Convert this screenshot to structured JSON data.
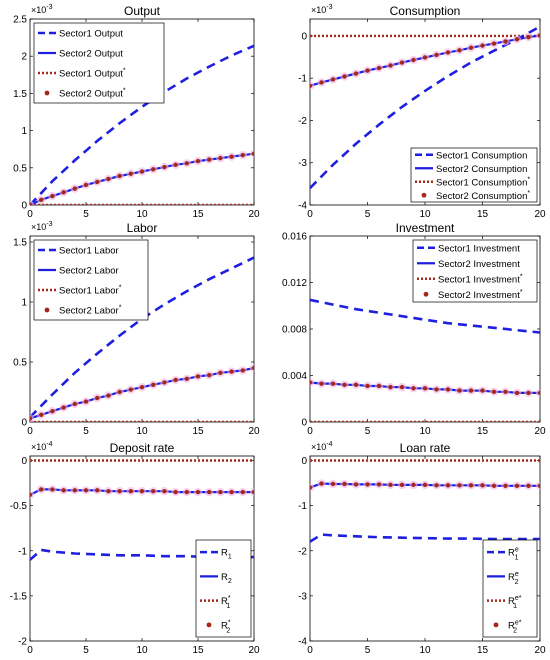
{
  "chart_data": [
    {
      "type": "line",
      "title": "Output",
      "scale_label": "×10",
      "scale_exp": "-3",
      "xlim": [
        0,
        20
      ],
      "ylim": [
        0,
        2.5
      ],
      "xticks": [
        0,
        5,
        10,
        15,
        20
      ],
      "xtick_labels": [
        "0",
        "5",
        "10",
        "15",
        "20"
      ],
      "yticks": [
        0,
        0.5,
        1,
        1.5,
        2,
        2.5
      ],
      "ytick_labels": [
        "0",
        "0.5",
        "1",
        "1.5",
        "2",
        "2.5"
      ],
      "legend_position": "top-left",
      "series": [
        {
          "name": "Sector1 Output",
          "name_sup": "",
          "style": "dash",
          "x": [
            0,
            2,
            4,
            6,
            8,
            10,
            12,
            14,
            16,
            18,
            20
          ],
          "y": [
            0.0,
            0.32,
            0.6,
            0.86,
            1.1,
            1.32,
            1.52,
            1.7,
            1.86,
            2.01,
            2.14
          ]
        },
        {
          "name": "Sector2 Output",
          "name_sup": "",
          "style": "solid",
          "x": [
            0,
            1,
            2,
            3,
            4,
            5,
            6,
            7,
            8,
            9,
            10,
            11,
            12,
            13,
            14,
            15,
            16,
            17,
            18,
            19,
            20
          ],
          "y": [
            0.0,
            0.07,
            0.12,
            0.17,
            0.22,
            0.27,
            0.31,
            0.35,
            0.39,
            0.42,
            0.45,
            0.48,
            0.51,
            0.54,
            0.56,
            0.59,
            0.61,
            0.63,
            0.65,
            0.67,
            0.69
          ]
        },
        {
          "name": "Sector1 Output",
          "name_sup": "*",
          "style": "dot",
          "x": [
            0,
            20
          ],
          "y": [
            0.0,
            0.0
          ]
        },
        {
          "name": "Sector2 Output",
          "name_sup": "*",
          "style": "marker",
          "x": [
            0,
            1,
            2,
            3,
            4,
            5,
            6,
            7,
            8,
            9,
            10,
            11,
            12,
            13,
            14,
            15,
            16,
            17,
            18,
            19,
            20
          ],
          "y": [
            0.0,
            0.07,
            0.12,
            0.17,
            0.22,
            0.27,
            0.31,
            0.35,
            0.39,
            0.42,
            0.45,
            0.48,
            0.51,
            0.54,
            0.56,
            0.59,
            0.61,
            0.63,
            0.65,
            0.67,
            0.69
          ]
        }
      ]
    },
    {
      "type": "line",
      "title": "Consumption",
      "scale_label": "×10",
      "scale_exp": "-3",
      "xlim": [
        0,
        20
      ],
      "ylim": [
        -4,
        0.4
      ],
      "xticks": [
        0,
        5,
        10,
        15,
        20
      ],
      "xtick_labels": [
        "0",
        "5",
        "10",
        "15",
        "20"
      ],
      "yticks": [
        -4,
        -3,
        -2,
        -1,
        0
      ],
      "ytick_labels": [
        "-4",
        "-3",
        "-2",
        "-1",
        "0"
      ],
      "legend_position": "bottom-right",
      "series": [
        {
          "name": "Sector1 Consumption",
          "name_sup": "",
          "style": "dash",
          "x": [
            0,
            2,
            4,
            6,
            8,
            10,
            12,
            14,
            16,
            18,
            20
          ],
          "y": [
            -3.6,
            -3.05,
            -2.55,
            -2.1,
            -1.68,
            -1.3,
            -0.95,
            -0.63,
            -0.35,
            -0.08,
            0.22
          ]
        },
        {
          "name": "Sector2 Consumption",
          "name_sup": "",
          "style": "solid",
          "x": [
            0,
            1,
            2,
            3,
            4,
            5,
            6,
            7,
            8,
            9,
            10,
            11,
            12,
            13,
            14,
            15,
            16,
            17,
            18,
            19,
            20
          ],
          "y": [
            -1.18,
            -1.1,
            -1.03,
            -0.96,
            -0.89,
            -0.82,
            -0.76,
            -0.7,
            -0.63,
            -0.57,
            -0.51,
            -0.45,
            -0.39,
            -0.34,
            -0.28,
            -0.23,
            -0.18,
            -0.13,
            -0.08,
            -0.03,
            0.01
          ]
        },
        {
          "name": "Sector1 Consumption",
          "name_sup": "*",
          "style": "dot",
          "x": [
            0,
            20
          ],
          "y": [
            0.0,
            0.0
          ]
        },
        {
          "name": "Sector2 Consumption",
          "name_sup": "*",
          "style": "marker",
          "x": [
            0,
            1,
            2,
            3,
            4,
            5,
            6,
            7,
            8,
            9,
            10,
            11,
            12,
            13,
            14,
            15,
            16,
            17,
            18,
            19,
            20
          ],
          "y": [
            -1.18,
            -1.1,
            -1.03,
            -0.96,
            -0.89,
            -0.82,
            -0.76,
            -0.7,
            -0.63,
            -0.57,
            -0.51,
            -0.45,
            -0.39,
            -0.34,
            -0.28,
            -0.23,
            -0.18,
            -0.13,
            -0.08,
            -0.03,
            0.01
          ]
        }
      ]
    },
    {
      "type": "line",
      "title": "Labor",
      "scale_label": "×10",
      "scale_exp": "-3",
      "xlim": [
        0,
        20
      ],
      "ylim": [
        0,
        1.55
      ],
      "xticks": [
        0,
        5,
        10,
        15,
        20
      ],
      "xtick_labels": [
        "0",
        "5",
        "10",
        "15",
        "20"
      ],
      "yticks": [
        0,
        0.5,
        1,
        1.5
      ],
      "ytick_labels": [
        "0",
        "0.5",
        "1",
        "1.5"
      ],
      "legend_position": "top-left",
      "series": [
        {
          "name": "Sector1 Labor",
          "name_sup": "",
          "style": "dash",
          "x": [
            0,
            2,
            4,
            6,
            8,
            10,
            12,
            14,
            16,
            18,
            20
          ],
          "y": [
            0.04,
            0.23,
            0.41,
            0.57,
            0.72,
            0.86,
            0.98,
            1.09,
            1.19,
            1.28,
            1.37
          ]
        },
        {
          "name": "Sector2 Labor",
          "name_sup": "",
          "style": "solid",
          "x": [
            0,
            1,
            2,
            3,
            4,
            5,
            6,
            7,
            8,
            9,
            10,
            11,
            12,
            13,
            14,
            15,
            16,
            17,
            18,
            19,
            20
          ],
          "y": [
            0.03,
            0.06,
            0.09,
            0.12,
            0.15,
            0.17,
            0.2,
            0.22,
            0.25,
            0.27,
            0.29,
            0.31,
            0.33,
            0.35,
            0.36,
            0.38,
            0.39,
            0.41,
            0.42,
            0.43,
            0.45
          ]
        },
        {
          "name": "Sector1 Labor",
          "name_sup": "*",
          "style": "dot",
          "x": [
            0,
            20
          ],
          "y": [
            0.0,
            0.0
          ]
        },
        {
          "name": "Sector2 Labor",
          "name_sup": "*",
          "style": "marker",
          "x": [
            0,
            1,
            2,
            3,
            4,
            5,
            6,
            7,
            8,
            9,
            10,
            11,
            12,
            13,
            14,
            15,
            16,
            17,
            18,
            19,
            20
          ],
          "y": [
            0.03,
            0.06,
            0.09,
            0.12,
            0.15,
            0.17,
            0.2,
            0.22,
            0.25,
            0.27,
            0.29,
            0.31,
            0.33,
            0.35,
            0.36,
            0.38,
            0.39,
            0.41,
            0.42,
            0.43,
            0.45
          ]
        }
      ]
    },
    {
      "type": "line",
      "title": "Investment",
      "scale_label": "",
      "scale_exp": "",
      "xlim": [
        0,
        20
      ],
      "ylim": [
        0,
        0.016
      ],
      "xticks": [
        0,
        5,
        10,
        15,
        20
      ],
      "xtick_labels": [
        "0",
        "5",
        "10",
        "15",
        "20"
      ],
      "yticks": [
        0,
        0.004,
        0.008,
        0.012,
        0.016
      ],
      "ytick_labels": [
        "0",
        "0.004",
        "0.008",
        "0.012",
        "0.016"
      ],
      "legend_position": "top-right",
      "series": [
        {
          "name": "Sector1 Investment",
          "name_sup": "",
          "style": "dash",
          "x": [
            0,
            2,
            4,
            6,
            8,
            10,
            12,
            14,
            16,
            18,
            20
          ],
          "y": [
            0.0105,
            0.0101,
            0.0097,
            0.0094,
            0.0091,
            0.0088,
            0.0085,
            0.0083,
            0.0081,
            0.0079,
            0.0077
          ]
        },
        {
          "name": "Sector2 Investment",
          "name_sup": "",
          "style": "solid",
          "x": [
            0,
            1,
            2,
            3,
            4,
            5,
            6,
            7,
            8,
            9,
            10,
            11,
            12,
            13,
            14,
            15,
            16,
            17,
            18,
            19,
            20
          ],
          "y": [
            0.0034,
            0.0033,
            0.0033,
            0.0032,
            0.0032,
            0.0031,
            0.0031,
            0.003,
            0.003,
            0.0029,
            0.0029,
            0.0028,
            0.0028,
            0.0027,
            0.0027,
            0.0027,
            0.0026,
            0.0026,
            0.0025,
            0.0025,
            0.0025
          ]
        },
        {
          "name": "Sector1 Investment",
          "name_sup": "*",
          "style": "dot",
          "x": [
            0,
            20
          ],
          "y": [
            0.0,
            0.0
          ]
        },
        {
          "name": "Sector2 Investment",
          "name_sup": "*",
          "style": "marker",
          "x": [
            0,
            1,
            2,
            3,
            4,
            5,
            6,
            7,
            8,
            9,
            10,
            11,
            12,
            13,
            14,
            15,
            16,
            17,
            18,
            19,
            20
          ],
          "y": [
            0.0034,
            0.0033,
            0.0033,
            0.0032,
            0.0032,
            0.0031,
            0.0031,
            0.003,
            0.003,
            0.0029,
            0.0029,
            0.0028,
            0.0028,
            0.0027,
            0.0027,
            0.0027,
            0.0026,
            0.0026,
            0.0025,
            0.0025,
            0.0025
          ]
        }
      ]
    },
    {
      "type": "line",
      "title": "Deposit rate",
      "scale_label": "×10",
      "scale_exp": "-4",
      "xlim": [
        0,
        20
      ],
      "ylim": [
        -2,
        0.05
      ],
      "xticks": [
        0,
        5,
        10,
        15,
        20
      ],
      "xtick_labels": [
        "0",
        "5",
        "10",
        "15",
        "20"
      ],
      "yticks": [
        -2,
        -1.5,
        -1,
        -0.5,
        0
      ],
      "ytick_labels": [
        "-2",
        "-1.5",
        "-1",
        "-0.5",
        "0"
      ],
      "legend_position": "bottom-right",
      "series": [
        {
          "name": "R",
          "name_sub": "1",
          "name_sup": "",
          "style": "dash",
          "x": [
            0,
            1,
            2,
            4,
            6,
            8,
            10,
            12,
            14,
            16,
            18,
            20
          ],
          "y": [
            -1.1,
            -0.99,
            -1.01,
            -1.03,
            -1.04,
            -1.05,
            -1.05,
            -1.06,
            -1.06,
            -1.07,
            -1.07,
            -1.07
          ]
        },
        {
          "name": "R",
          "name_sub": "2",
          "name_sup": "",
          "style": "solid",
          "x": [
            0,
            1,
            2,
            3,
            4,
            5,
            6,
            7,
            8,
            9,
            10,
            11,
            12,
            13,
            14,
            15,
            16,
            17,
            18,
            19,
            20
          ],
          "y": [
            -0.38,
            -0.32,
            -0.32,
            -0.33,
            -0.33,
            -0.33,
            -0.33,
            -0.34,
            -0.34,
            -0.34,
            -0.34,
            -0.34,
            -0.34,
            -0.35,
            -0.35,
            -0.35,
            -0.35,
            -0.35,
            -0.35,
            -0.35,
            -0.35
          ]
        },
        {
          "name": "R",
          "name_sub": "1",
          "name_sup": "*",
          "style": "dot",
          "x": [
            0,
            20
          ],
          "y": [
            0.0,
            0.0
          ]
        },
        {
          "name": "R",
          "name_sub": "2",
          "name_sup": "*",
          "style": "marker",
          "x": [
            0,
            1,
            2,
            3,
            4,
            5,
            6,
            7,
            8,
            9,
            10,
            11,
            12,
            13,
            14,
            15,
            16,
            17,
            18,
            19,
            20
          ],
          "y": [
            -0.38,
            -0.32,
            -0.32,
            -0.33,
            -0.33,
            -0.33,
            -0.33,
            -0.34,
            -0.34,
            -0.34,
            -0.34,
            -0.34,
            -0.34,
            -0.35,
            -0.35,
            -0.35,
            -0.35,
            -0.35,
            -0.35,
            -0.35,
            -0.35
          ]
        }
      ]
    },
    {
      "type": "line",
      "title": "Loan rate",
      "scale_label": "×10",
      "scale_exp": "-4",
      "xlim": [
        0,
        20
      ],
      "ylim": [
        -4,
        0.1
      ],
      "xticks": [
        0,
        5,
        10,
        15,
        20
      ],
      "xtick_labels": [
        "0",
        "5",
        "10",
        "15",
        "20"
      ],
      "yticks": [
        -4,
        -3,
        -2,
        -1,
        0
      ],
      "ytick_labels": [
        "-4",
        "-3",
        "-2",
        "-1",
        "0"
      ],
      "legend_position": "bottom-right",
      "series": [
        {
          "name": "R",
          "name_sub": "1",
          "name_sup": "e",
          "style": "dash",
          "x": [
            0,
            1,
            2,
            4,
            6,
            8,
            10,
            12,
            14,
            16,
            18,
            20
          ],
          "y": [
            -1.8,
            -1.64,
            -1.66,
            -1.68,
            -1.7,
            -1.71,
            -1.72,
            -1.73,
            -1.73,
            -1.74,
            -1.74,
            -1.74
          ]
        },
        {
          "name": "R",
          "name_sub": "2",
          "name_sup": "e",
          "style": "solid",
          "x": [
            0,
            1,
            2,
            3,
            4,
            5,
            6,
            7,
            8,
            9,
            10,
            11,
            12,
            13,
            14,
            15,
            16,
            17,
            18,
            19,
            20
          ],
          "y": [
            -0.6,
            -0.51,
            -0.52,
            -0.52,
            -0.53,
            -0.53,
            -0.53,
            -0.54,
            -0.54,
            -0.54,
            -0.54,
            -0.55,
            -0.55,
            -0.55,
            -0.55,
            -0.55,
            -0.56,
            -0.56,
            -0.56,
            -0.56,
            -0.56
          ]
        },
        {
          "name": "R",
          "name_sub": "1",
          "name_sup": "e*",
          "style": "dot",
          "x": [
            0,
            20
          ],
          "y": [
            0.0,
            0.0
          ]
        },
        {
          "name": "R",
          "name_sub": "2",
          "name_sup": "e*",
          "style": "marker",
          "x": [
            0,
            1,
            2,
            3,
            4,
            5,
            6,
            7,
            8,
            9,
            10,
            11,
            12,
            13,
            14,
            15,
            16,
            17,
            18,
            19,
            20
          ],
          "y": [
            -0.6,
            -0.51,
            -0.52,
            -0.52,
            -0.53,
            -0.53,
            -0.53,
            -0.54,
            -0.54,
            -0.54,
            -0.54,
            -0.55,
            -0.55,
            -0.55,
            -0.55,
            -0.55,
            -0.56,
            -0.56,
            -0.56,
            -0.56,
            -0.56
          ]
        }
      ]
    }
  ],
  "colors": {
    "series_blue": "#1f1fe0",
    "series_red": "#a5281b",
    "marker_glow": "#f4b6e6",
    "axis": "#000000"
  }
}
